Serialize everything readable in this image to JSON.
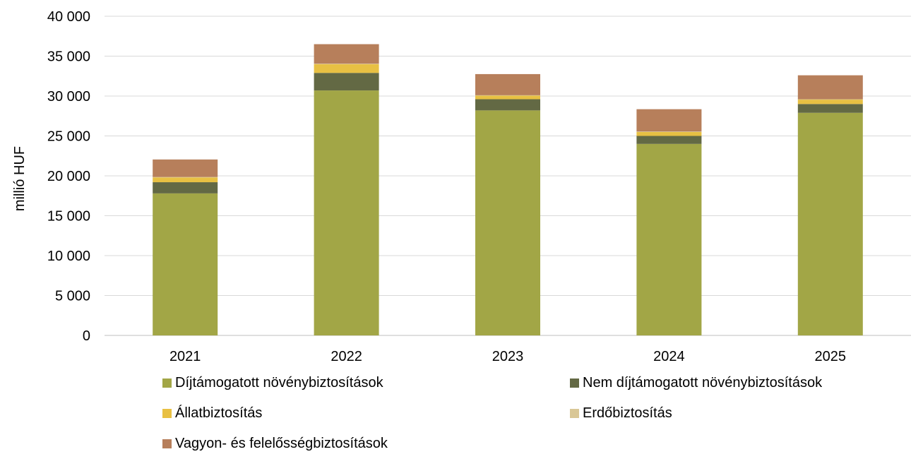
{
  "chart_data": {
    "type": "bar",
    "stacked": true,
    "title": "",
    "xlabel": "",
    "ylabel": "millió HUF",
    "categories": [
      "2021",
      "2022",
      "2023",
      "2024",
      "2025"
    ],
    "ylim": [
      0,
      40000
    ],
    "yticks": [
      0,
      5000,
      10000,
      15000,
      20000,
      25000,
      30000,
      35000,
      40000
    ],
    "ytick_labels": [
      "0",
      "5 000",
      "10 000",
      "15 000",
      "20 000",
      "25 000",
      "30 000",
      "35 000",
      "40 000"
    ],
    "grid": true,
    "legend_position": "bottom",
    "series": [
      {
        "name": "Díjtámogatott növénybiztosítások",
        "color": "#a2a646",
        "values": [
          17800,
          30700,
          28200,
          24000,
          27900
        ]
      },
      {
        "name": "Nem díjtámogatott növénybiztosítások",
        "color": "#636944",
        "values": [
          1400,
          2200,
          1400,
          1000,
          1100
        ]
      },
      {
        "name": "Állatbiztosítás",
        "color": "#e8c043",
        "values": [
          600,
          1100,
          450,
          500,
          550
        ]
      },
      {
        "name": "Erdőbiztosítás",
        "color": "#d9c796",
        "values": [
          50,
          50,
          50,
          50,
          50
        ]
      },
      {
        "name": "Vagyon- és felelősségbiztosítások",
        "color": "#b77f5b",
        "values": [
          2200,
          2450,
          2650,
          2800,
          3000
        ]
      }
    ]
  }
}
